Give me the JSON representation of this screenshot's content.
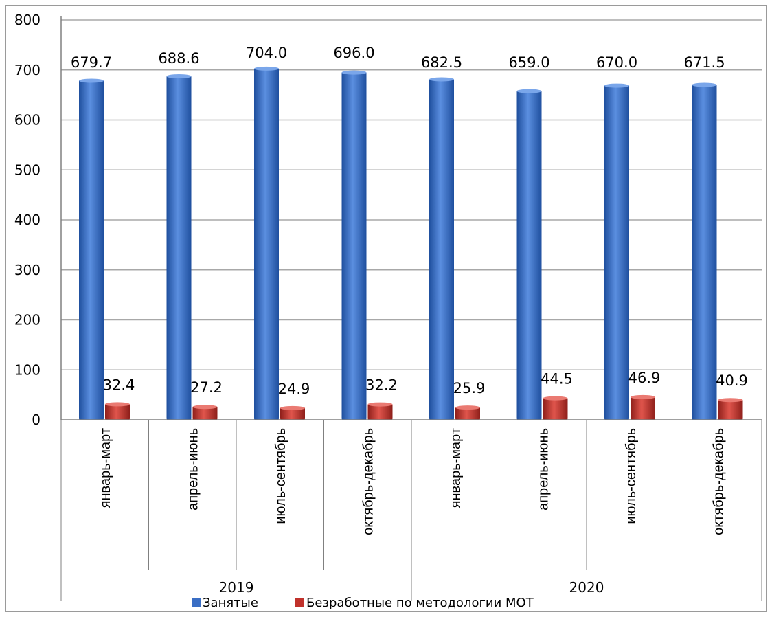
{
  "chart_data": {
    "type": "bar",
    "ylim": [
      0,
      800
    ],
    "yticks": [
      "0",
      "100",
      "200",
      "300",
      "400",
      "500",
      "600",
      "700",
      "800"
    ],
    "grid": true,
    "legend_position": "bottom",
    "groups": [
      {
        "label": "2019",
        "categories": [
          "январь-март",
          "апрель-июнь",
          "июль-сентябрь",
          "октябрь-декабрь"
        ]
      },
      {
        "label": "2020",
        "categories": [
          "январь-март",
          "апрель-июнь",
          "июль-сентябрь",
          "октябрь-декабрь"
        ]
      }
    ],
    "categories": [
      "январь-март",
      "апрель-июнь",
      "июль-сентябрь",
      "октябрь-декабрь",
      "январь-март",
      "апрель-июнь",
      "июль-сентябрь",
      "октябрь-декабрь"
    ],
    "series": [
      {
        "name": "Занятые",
        "color": "#3a6ec4",
        "values": [
          679.7,
          688.6,
          704.0,
          696.0,
          682.5,
          659.0,
          670.0,
          671.5
        ],
        "labels": [
          "679.7",
          "688.6",
          "704.0",
          "696.0",
          "682.5",
          "659.0",
          "670.0",
          "671.5"
        ]
      },
      {
        "name": "Безработные по методологии МОТ",
        "color": "#c0312b",
        "values": [
          32.4,
          27.2,
          24.9,
          32.2,
          25.9,
          44.5,
          46.9,
          40.9
        ],
        "labels": [
          "32.4",
          "27.2",
          "24.9",
          "32.2",
          "25.9",
          "44.5",
          "46.9",
          "40.9"
        ]
      }
    ]
  }
}
